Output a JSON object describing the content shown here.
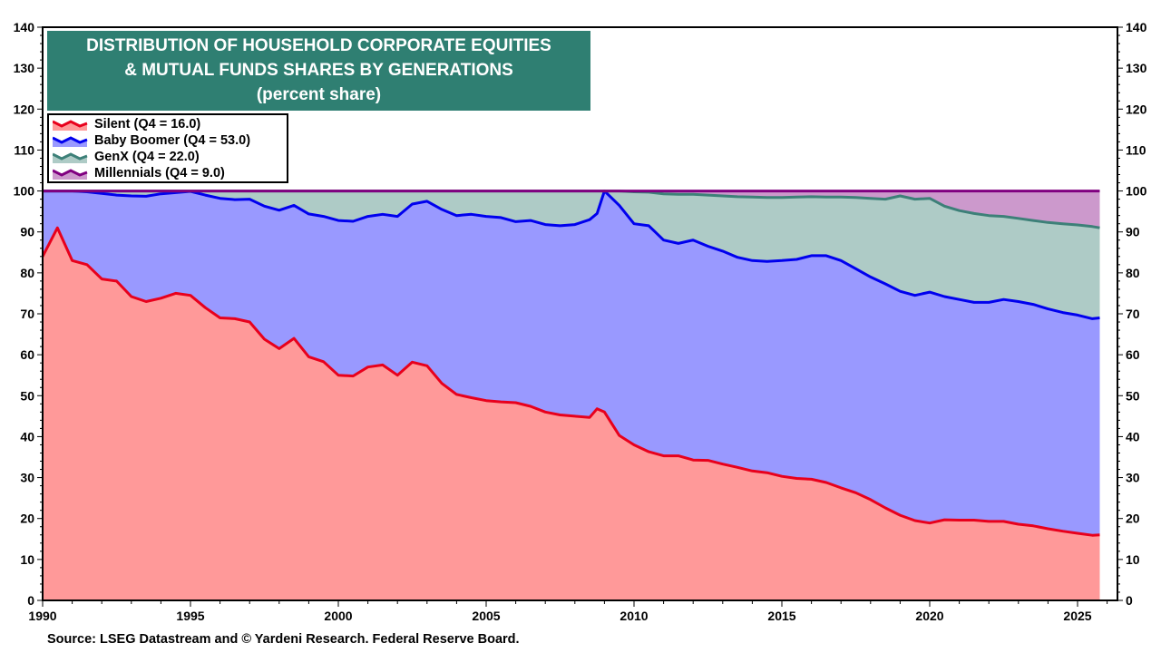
{
  "chart_data": {
    "type": "area",
    "stacked": true,
    "title": [
      "DISTRIBUTION OF HOUSEHOLD CORPORATE EQUITIES",
      "& MUTUAL FUNDS SHARES BY GENERATIONS",
      "(percent share)"
    ],
    "xlabel": "",
    "ylabel": "",
    "ylim": [
      0,
      140
    ],
    "xlim": [
      1990,
      2026.5
    ],
    "yticks": [
      0,
      10,
      20,
      30,
      40,
      50,
      60,
      70,
      80,
      90,
      100,
      110,
      120,
      130,
      140
    ],
    "xticks": [
      1990,
      1995,
      2000,
      2005,
      2010,
      2015,
      2020,
      2025
    ],
    "y_axis_both_sides": true,
    "grid": false,
    "legend_position": "top-left",
    "x": [
      1990,
      1990.5,
      1991,
      1991.5,
      1992,
      1992.5,
      1993,
      1993.5,
      1994,
      1994.5,
      1995,
      1995.5,
      1996,
      1996.5,
      1997,
      1997.5,
      1998,
      1998.5,
      1999,
      1999.5,
      2000,
      2000.5,
      2001,
      2001.5,
      2002,
      2002.5,
      2003,
      2003.5,
      2004,
      2004.5,
      2005,
      2005.5,
      2006,
      2006.5,
      2007,
      2007.5,
      2008,
      2008.5,
      2008.75,
      2009,
      2009.5,
      2010,
      2010.5,
      2011,
      2011.5,
      2012,
      2012.5,
      2013,
      2013.5,
      2014,
      2014.5,
      2015,
      2015.5,
      2016,
      2016.5,
      2017,
      2017.5,
      2018,
      2018.5,
      2019,
      2019.5,
      2020,
      2020.5,
      2021,
      2021.5,
      2022,
      2022.5,
      2023,
      2023.5,
      2024,
      2024.5,
      2025,
      2025.5,
      2025.75
    ],
    "series": [
      {
        "name": "Silent (Q4 = 16.0)",
        "line_color": "#e8001c",
        "fill_color": "#ff9999",
        "values": [
          84,
          91,
          83,
          82,
          78.5,
          78,
          74.2,
          73,
          73.8,
          75,
          74.5,
          71.5,
          69,
          68.8,
          68,
          63.8,
          61.5,
          64,
          59.5,
          58.3,
          55,
          54.8,
          57,
          57.5,
          55,
          58.2,
          57.3,
          53,
          50.3,
          49.5,
          48.8,
          48.5,
          48.3,
          47.4,
          46,
          45.3,
          45,
          44.7,
          46.8,
          46,
          40.3,
          38,
          36.3,
          35.3,
          35.3,
          34.3,
          34.2,
          33.3,
          32.5,
          31.6,
          31.2,
          30.3,
          29.8,
          29.6,
          28.8,
          27.5,
          26.3,
          24.6,
          22.6,
          20.8,
          19.5,
          18.9,
          19.7,
          19.6,
          19.6,
          19.3,
          19.3,
          18.6,
          18.2,
          17.5,
          16.9,
          16.4,
          15.9,
          16.0
        ]
      },
      {
        "name": "Baby Boomer (Q4 = 53.0)",
        "line_color": "#0000ee",
        "fill_color": "#9999ff",
        "values": [
          16,
          9,
          17,
          17.8,
          20.9,
          21,
          24.6,
          25.7,
          25.5,
          24.6,
          25.4,
          27.5,
          29.2,
          29.1,
          30,
          32.5,
          33.8,
          32.5,
          34.9,
          35.5,
          37.8,
          37.8,
          36.8,
          36.8,
          38.8,
          38.6,
          40.2,
          42.5,
          43.7,
          44.8,
          45,
          45,
          44.2,
          45.4,
          45.8,
          46.2,
          46.8,
          48.3,
          47.7,
          54,
          56.2,
          54,
          55.2,
          52.7,
          51.9,
          53.7,
          52.3,
          52,
          51.3,
          51.4,
          51.6,
          52.7,
          53.5,
          54.6,
          55.4,
          55.5,
          54.7,
          54.4,
          54.7,
          54.7,
          55,
          56.4,
          54.5,
          53.9,
          53.2,
          53.5,
          54.2,
          54.4,
          54.1,
          53.7,
          53.4,
          53.3,
          52.9,
          53
        ]
      },
      {
        "name": "GenX (Q4 = 22.0)",
        "line_color": "#3d8078",
        "fill_color": "#aecbc6",
        "values": [
          0,
          0,
          0,
          0.2,
          0.6,
          1,
          1.2,
          1.3,
          0.7,
          0.4,
          0.1,
          1,
          1.8,
          2.1,
          2,
          3.7,
          4.7,
          3.5,
          5.6,
          6.2,
          7.2,
          7.4,
          6.2,
          5.7,
          6.2,
          3.2,
          2.5,
          4.5,
          6,
          5.7,
          6.2,
          6.5,
          7.5,
          7.2,
          8.2,
          8.5,
          8.2,
          7,
          5.5,
          0,
          3.5,
          7.8,
          8.2,
          11.3,
          12,
          11.2,
          12.5,
          13.5,
          14.8,
          15.5,
          15.6,
          15.4,
          15.2,
          14.4,
          14.3,
          15.5,
          17.4,
          19.2,
          20.7,
          23.3,
          23.5,
          22.9,
          22.1,
          21.7,
          21.7,
          21.2,
          20.3,
          20.3,
          20.5,
          21.1,
          21.7,
          22,
          22.5,
          22
        ]
      },
      {
        "name": "Millennials (Q4 = 9.0)",
        "line_color": "#800080",
        "fill_color": "#cc99cc",
        "values": [
          0,
          0,
          0,
          0,
          0,
          0,
          0,
          0,
          0,
          0,
          0,
          0,
          0,
          0,
          0,
          0,
          0,
          0,
          0,
          0,
          0,
          0,
          0,
          0,
          0,
          0,
          0,
          0,
          0,
          0,
          0,
          0,
          0,
          0,
          0,
          0,
          0,
          0,
          0,
          0,
          0,
          0.2,
          0.3,
          0.7,
          0.8,
          0.8,
          1,
          1.2,
          1.4,
          1.5,
          1.6,
          1.6,
          1.5,
          1.4,
          1.5,
          1.5,
          1.6,
          1.8,
          2,
          1.2,
          2,
          1.8,
          3.7,
          4.8,
          5.5,
          6,
          6.2,
          6.7,
          7.2,
          7.7,
          8,
          8.3,
          8.7,
          9
        ]
      }
    ]
  },
  "source": "Source: LSEG Datastream and © Yardeni Research. Federal Reserve Board."
}
